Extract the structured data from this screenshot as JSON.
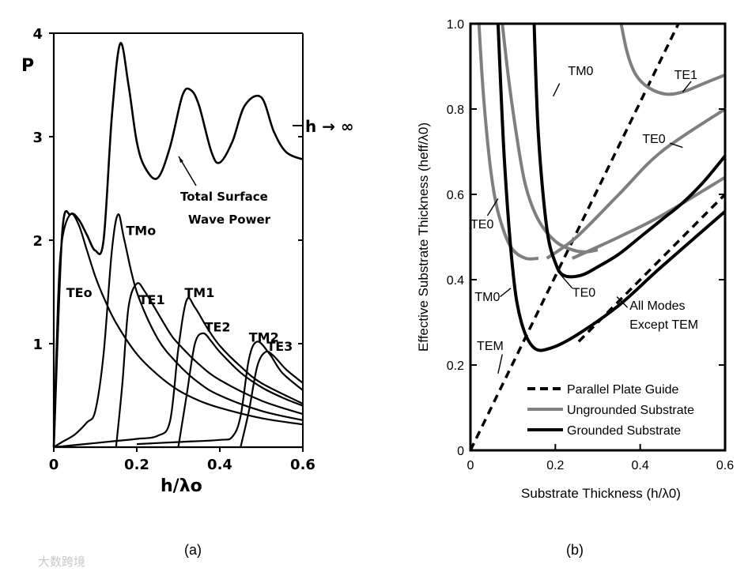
{
  "colors": {
    "black": "#000000",
    "gray": "#7f7f7f",
    "background": "#ffffff"
  },
  "chart_data": [
    {
      "panel": "(a)",
      "type": "line",
      "title": "",
      "ylabel": "P",
      "xlabel": "h/λo",
      "xlim": [
        0,
        0.6
      ],
      "ylim": [
        0,
        4
      ],
      "xticks": [
        "0",
        "0.2",
        "0.4",
        "0.6"
      ],
      "yticks": [
        "1",
        "2",
        "3",
        "4"
      ],
      "asymptote_label": "h → ∞",
      "asymptote_value": 3.1,
      "annotation": [
        "Total Surface",
        "Wave Power"
      ],
      "series": [
        {
          "name": "Total Surface Wave Power",
          "x": [
            0,
            0.02,
            0.04,
            0.06,
            0.08,
            0.1,
            0.12,
            0.14,
            0.16,
            0.18,
            0.2,
            0.22,
            0.25,
            0.28,
            0.31,
            0.33,
            0.35,
            0.38,
            0.4,
            0.43,
            0.46,
            0.5,
            0.53,
            0.56,
            0.6
          ],
          "y": [
            0,
            2.05,
            2.25,
            2.2,
            2.05,
            1.9,
            2.0,
            3.2,
            3.9,
            3.5,
            2.95,
            2.7,
            2.6,
            2.9,
            3.4,
            3.45,
            3.3,
            2.85,
            2.75,
            2.95,
            3.3,
            3.38,
            3.05,
            2.85,
            2.78
          ]
        },
        {
          "name": "TEo",
          "x": [
            0,
            0.01,
            0.02,
            0.04,
            0.06,
            0.08,
            0.1,
            0.12,
            0.15,
            0.2,
            0.25,
            0.3,
            0.35,
            0.4,
            0.5,
            0.6
          ],
          "y": [
            0,
            1.4,
            2.0,
            2.25,
            2.15,
            1.9,
            1.65,
            1.45,
            1.2,
            0.9,
            0.7,
            0.55,
            0.45,
            0.38,
            0.28,
            0.22
          ]
        },
        {
          "name": "TMo",
          "x": [
            0,
            0.02,
            0.05,
            0.08,
            0.1,
            0.12,
            0.14,
            0.155,
            0.17,
            0.2,
            0.25,
            0.3,
            0.35,
            0.4,
            0.5,
            0.6
          ],
          "y": [
            0.0,
            0.05,
            0.12,
            0.24,
            0.35,
            0.9,
            1.9,
            2.25,
            2.0,
            1.5,
            1.05,
            0.8,
            0.62,
            0.5,
            0.35,
            0.26
          ]
        },
        {
          "name": "TE1",
          "x": [
            0.15,
            0.165,
            0.18,
            0.2,
            0.22,
            0.25,
            0.28,
            0.3,
            0.35,
            0.4,
            0.5,
            0.6
          ],
          "y": [
            0,
            0.6,
            1.35,
            1.58,
            1.5,
            1.3,
            1.1,
            1.0,
            0.8,
            0.65,
            0.45,
            0.32
          ]
        },
        {
          "name": "TM1",
          "x": [
            0.0,
            0.05,
            0.1,
            0.15,
            0.2,
            0.25,
            0.28,
            0.3,
            0.32,
            0.34,
            0.37,
            0.4,
            0.45,
            0.5,
            0.6
          ],
          "y": [
            0.0,
            0.02,
            0.04,
            0.06,
            0.08,
            0.11,
            0.25,
            0.95,
            1.42,
            1.35,
            1.15,
            0.98,
            0.78,
            0.62,
            0.42
          ]
        },
        {
          "name": "TE2",
          "x": [
            0.3,
            0.32,
            0.34,
            0.36,
            0.38,
            0.4,
            0.45,
            0.5,
            0.55,
            0.6
          ],
          "y": [
            0,
            0.5,
            1.0,
            1.1,
            1.02,
            0.92,
            0.72,
            0.58,
            0.48,
            0.4
          ]
        },
        {
          "name": "TM2",
          "x": [
            0.2,
            0.3,
            0.4,
            0.43,
            0.45,
            0.47,
            0.49,
            0.52,
            0.55,
            0.6
          ],
          "y": [
            0.03,
            0.05,
            0.07,
            0.1,
            0.3,
            0.85,
            1.02,
            0.9,
            0.72,
            0.55
          ]
        },
        {
          "name": "TE3",
          "x": [
            0.45,
            0.47,
            0.49,
            0.51,
            0.53,
            0.56,
            0.6
          ],
          "y": [
            0,
            0.35,
            0.78,
            0.92,
            0.88,
            0.75,
            0.62
          ]
        }
      ]
    },
    {
      "panel": "(b)",
      "type": "line",
      "title": "",
      "xlabel": "Substrate Thickness (h/λ0)",
      "ylabel": "Effective Substrate Thickness (heff/λ0)",
      "xlim": [
        0,
        0.6
      ],
      "ylim": [
        0,
        1.0
      ],
      "xticks": [
        "0",
        "0.2",
        "0.4",
        "0.6"
      ],
      "yticks": [
        "0",
        "0.2",
        "0.4",
        "0.6",
        "0.8",
        "1.0"
      ],
      "legend": [
        {
          "label": "Parallel Plate Guide",
          "style": "dashed-black"
        },
        {
          "label": "Ungrounded Substrate",
          "style": "solid-gray"
        },
        {
          "label": "Grounded Substrate",
          "style": "solid-black"
        }
      ],
      "annotations": [
        "TM0",
        "TE1",
        "TE0",
        "TE0",
        "TM0",
        "TE0",
        "All Modes",
        "Except TEM",
        "TEM"
      ],
      "series": [
        {
          "name": "Parallel Plate Guide (TEM)",
          "x": [
            0,
            0.49
          ],
          "y": [
            0,
            1.0
          ]
        },
        {
          "name": "Parallel Plate Guide (All Modes Except TEM)",
          "x": [
            0.255,
            0.6
          ],
          "y": [
            0.255,
            0.6
          ]
        },
        {
          "name": "Ungrounded TE0 (left)",
          "x": [
            0.02,
            0.03,
            0.045,
            0.06,
            0.08,
            0.1,
            0.13,
            0.16
          ],
          "y": [
            1.0,
            0.84,
            0.68,
            0.58,
            0.51,
            0.47,
            0.45,
            0.45
          ]
        },
        {
          "name": "Ungrounded TM0",
          "x": [
            0.075,
            0.09,
            0.11,
            0.13,
            0.16,
            0.2,
            0.24,
            0.27,
            0.3
          ],
          "y": [
            1.0,
            0.87,
            0.73,
            0.62,
            0.54,
            0.49,
            0.47,
            0.465,
            0.47
          ]
        },
        {
          "name": "Ungrounded TE1",
          "x": [
            0.355,
            0.37,
            0.39,
            0.42,
            0.46,
            0.5,
            0.55,
            0.6
          ],
          "y": [
            1.0,
            0.93,
            0.88,
            0.85,
            0.835,
            0.84,
            0.86,
            0.88
          ]
        },
        {
          "name": "Ungrounded TE0",
          "x": [
            0.18,
            0.25,
            0.35,
            0.45,
            0.6
          ],
          "y": [
            0.45,
            0.5,
            0.6,
            0.7,
            0.8
          ]
        },
        {
          "name": "Ungrounded Substrate (high)",
          "x": [
            0.24,
            0.35,
            0.45,
            0.6
          ],
          "y": [
            0.45,
            0.5,
            0.55,
            0.64
          ]
        },
        {
          "name": "Grounded TM0",
          "x": [
            0.065,
            0.08,
            0.1,
            0.12,
            0.15,
            0.19,
            0.25,
            0.35,
            0.45,
            0.6
          ],
          "y": [
            1.0,
            0.68,
            0.42,
            0.3,
            0.24,
            0.24,
            0.27,
            0.34,
            0.43,
            0.56
          ]
        },
        {
          "name": "Grounded TE0",
          "x": [
            0.15,
            0.16,
            0.18,
            0.2,
            0.22,
            0.26,
            0.3,
            0.35,
            0.4,
            0.45,
            0.5,
            0.55,
            0.6
          ],
          "y": [
            1.0,
            0.74,
            0.52,
            0.44,
            0.41,
            0.41,
            0.43,
            0.46,
            0.5,
            0.54,
            0.58,
            0.63,
            0.69
          ]
        }
      ]
    }
  ],
  "captions": {
    "a": "(a)",
    "b": "(b)"
  },
  "watermark": "大数跨境"
}
